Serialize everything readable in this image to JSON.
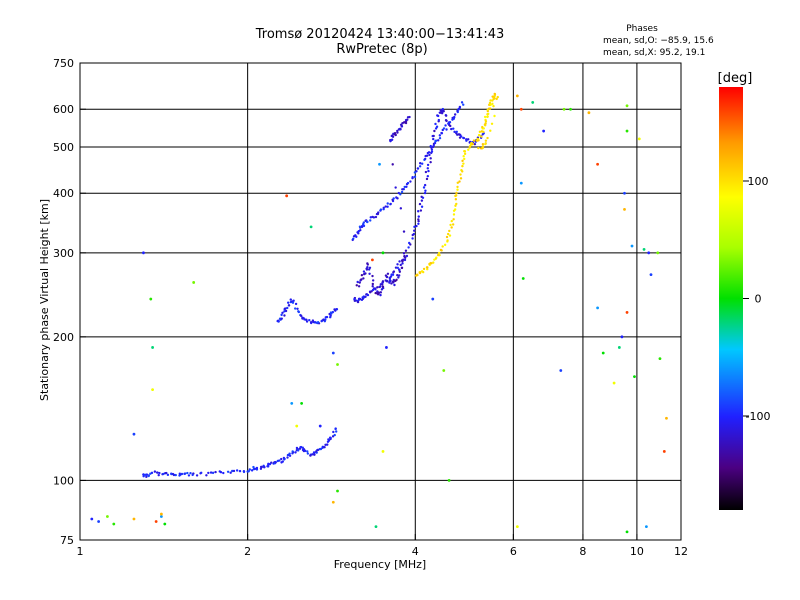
{
  "chart_data": {
    "type": "scatter",
    "title": "Tromsø 20120424 13:40:00−13:41:43",
    "subtitle": "RwPretec (8p)",
    "xlabel": "Frequency [MHz]",
    "ylabel": "Stationary phase Virtual Height [km]",
    "xscale": "log",
    "yscale": "log",
    "xlim": [
      1,
      12
    ],
    "ylim": [
      75,
      750
    ],
    "x_ticks": [
      1,
      2,
      4,
      6,
      8,
      10,
      12
    ],
    "y_ticks": [
      75,
      100,
      200,
      300,
      400,
      500,
      600,
      750
    ],
    "x_gridlines": [
      2,
      4,
      6,
      8,
      10
    ],
    "y_gridlines": [
      100,
      200,
      300,
      400,
      500,
      600
    ],
    "phase_stats": {
      "title": "Phases",
      "o_line": "mean, sd,O: −85.9, 15.6",
      "x_line": "mean, sd,X:  95.2, 19.1"
    },
    "colorbar": {
      "label": "[deg]",
      "range": [
        -180,
        180
      ],
      "ticks": [
        100,
        0,
        -100
      ]
    },
    "colors": {
      "o_mode": "#2244ee",
      "o_mode_light": "#2f7fe8",
      "x_mode": "#f2c200",
      "x_mode_orange": "#ff9900",
      "violet": "#3a10c8"
    },
    "series": [
      {
        "name": "O-mode E/F1 trace",
        "phase_deg": -100,
        "points": [
          [
            1.3,
            103
          ],
          [
            1.32,
            102
          ],
          [
            1.36,
            104
          ],
          [
            1.4,
            103
          ],
          [
            1.45,
            103
          ],
          [
            1.5,
            103
          ],
          [
            1.55,
            103
          ],
          [
            1.6,
            103
          ],
          [
            1.7,
            103
          ],
          [
            1.8,
            104
          ],
          [
            1.9,
            104
          ],
          [
            2.0,
            105
          ],
          [
            2.05,
            106
          ],
          [
            2.1,
            106
          ],
          [
            2.15,
            107
          ],
          [
            2.2,
            108
          ],
          [
            2.25,
            109
          ],
          [
            2.3,
            110
          ],
          [
            2.35,
            112
          ],
          [
            2.4,
            114
          ],
          [
            2.45,
            116
          ],
          [
            2.5,
            117
          ],
          [
            2.55,
            115
          ],
          [
            2.6,
            113
          ],
          [
            2.65,
            114
          ],
          [
            2.7,
            116
          ],
          [
            2.75,
            118
          ],
          [
            2.8,
            121
          ],
          [
            2.85,
            125
          ],
          [
            2.9,
            130
          ]
        ]
      },
      {
        "name": "O-mode F2 lower trace",
        "phase_deg": -100,
        "points": [
          [
            2.27,
            215
          ],
          [
            2.3,
            218
          ],
          [
            2.33,
            225
          ],
          [
            2.36,
            232
          ],
          [
            2.4,
            240
          ],
          [
            2.45,
            228
          ],
          [
            2.5,
            220
          ],
          [
            2.55,
            216
          ],
          [
            2.6,
            215
          ],
          [
            2.65,
            215
          ],
          [
            2.7,
            215
          ],
          [
            2.75,
            217
          ],
          [
            2.8,
            220
          ],
          [
            2.85,
            225
          ],
          [
            2.9,
            230
          ]
        ]
      },
      {
        "name": "O-mode F2 main trace",
        "phase_deg": -110,
        "points": [
          [
            3.1,
            240
          ],
          [
            3.15,
            238
          ],
          [
            3.2,
            240
          ],
          [
            3.25,
            243
          ],
          [
            3.3,
            247
          ],
          [
            3.4,
            252
          ],
          [
            3.5,
            258
          ],
          [
            3.6,
            266
          ],
          [
            3.7,
            278
          ],
          [
            3.8,
            292
          ],
          [
            3.9,
            312
          ],
          [
            4.0,
            335
          ],
          [
            4.05,
            355
          ],
          [
            4.1,
            378
          ],
          [
            4.15,
            405
          ],
          [
            4.2,
            440
          ],
          [
            4.25,
            475
          ],
          [
            4.3,
            510
          ],
          [
            4.35,
            545
          ],
          [
            4.4,
            580
          ],
          [
            4.45,
            600
          ],
          [
            4.5,
            590
          ],
          [
            4.6,
            560
          ],
          [
            4.7,
            540
          ],
          [
            4.8,
            530
          ],
          [
            4.9,
            520
          ],
          [
            5.0,
            515
          ],
          [
            5.1,
            510
          ],
          [
            5.2,
            520
          ],
          [
            5.3,
            540
          ]
        ]
      },
      {
        "name": "O-mode upper trace",
        "phase_deg": -100,
        "points": [
          [
            3.1,
            320
          ],
          [
            3.15,
            330
          ],
          [
            3.2,
            338
          ],
          [
            3.25,
            345
          ],
          [
            3.3,
            352
          ],
          [
            3.4,
            360
          ],
          [
            3.5,
            370
          ],
          [
            3.6,
            380
          ],
          [
            3.7,
            392
          ],
          [
            3.8,
            405
          ],
          [
            3.9,
            420
          ],
          [
            4.0,
            440
          ],
          [
            4.1,
            460
          ],
          [
            4.2,
            480
          ],
          [
            4.3,
            500
          ],
          [
            4.4,
            520
          ],
          [
            4.5,
            540
          ],
          [
            4.6,
            560
          ],
          [
            4.7,
            580
          ],
          [
            4.8,
            600
          ],
          [
            4.9,
            620
          ]
        ]
      },
      {
        "name": "O-mode spread echoes",
        "phase_deg": -120,
        "points": [
          [
            3.15,
            255
          ],
          [
            3.2,
            265
          ],
          [
            3.25,
            275
          ],
          [
            3.3,
            285
          ],
          [
            3.35,
            262
          ],
          [
            3.4,
            248
          ],
          [
            3.45,
            245
          ],
          [
            3.5,
            255
          ],
          [
            3.55,
            270
          ],
          [
            3.6,
            262
          ],
          [
            3.65,
            258
          ],
          [
            3.7,
            265
          ],
          [
            3.75,
            275
          ],
          [
            3.8,
            284
          ],
          [
            3.85,
            296
          ],
          [
            3.6,
            515
          ],
          [
            3.65,
            525
          ],
          [
            3.7,
            535
          ],
          [
            3.75,
            545
          ],
          [
            3.8,
            555
          ],
          [
            3.85,
            565
          ],
          [
            3.9,
            580
          ]
        ]
      },
      {
        "name": "X-mode F2 trace",
        "phase_deg": 100,
        "points": [
          [
            4.0,
            270
          ],
          [
            4.1,
            272
          ],
          [
            4.2,
            278
          ],
          [
            4.3,
            286
          ],
          [
            4.4,
            296
          ],
          [
            4.5,
            308
          ],
          [
            4.6,
            325
          ],
          [
            4.65,
            345
          ],
          [
            4.7,
            370
          ],
          [
            4.75,
            398
          ],
          [
            4.8,
            425
          ],
          [
            4.85,
            455
          ],
          [
            4.9,
            485
          ],
          [
            5.0,
            505
          ],
          [
            5.1,
            510
          ],
          [
            5.2,
            520
          ],
          [
            5.25,
            535
          ],
          [
            5.3,
            550
          ],
          [
            5.35,
            570
          ],
          [
            5.4,
            590
          ],
          [
            5.45,
            610
          ],
          [
            5.5,
            630
          ],
          [
            5.55,
            645
          ],
          [
            5.6,
            630
          ],
          [
            5.4,
            520
          ],
          [
            5.3,
            500
          ],
          [
            5.2,
            495
          ]
        ]
      },
      {
        "name": "Scattered echoes",
        "phase_deg": 0,
        "points": [
          [
            1.05,
            83
          ],
          [
            1.08,
            82
          ],
          [
            1.12,
            84
          ],
          [
            1.15,
            81
          ],
          [
            1.25,
            83
          ],
          [
            1.37,
            82
          ],
          [
            1.4,
            84
          ],
          [
            1.42,
            81
          ],
          [
            1.35,
            155
          ],
          [
            1.35,
            190
          ],
          [
            1.3,
            300
          ],
          [
            1.25,
            125
          ],
          [
            1.6,
            260
          ],
          [
            1.34,
            240
          ],
          [
            1.4,
            85
          ],
          [
            2.35,
            395
          ],
          [
            2.4,
            145
          ],
          [
            2.5,
            145
          ],
          [
            2.45,
            130
          ],
          [
            2.6,
            340
          ],
          [
            2.7,
            130
          ],
          [
            2.85,
            185
          ],
          [
            2.9,
            175
          ],
          [
            2.9,
            95
          ],
          [
            2.85,
            90
          ],
          [
            3.35,
            290
          ],
          [
            3.45,
            460
          ],
          [
            3.5,
            300
          ],
          [
            3.5,
            115
          ],
          [
            3.4,
            80
          ],
          [
            3.55,
            190
          ],
          [
            4.3,
            240
          ],
          [
            4.5,
            170
          ],
          [
            4.6,
            100
          ],
          [
            6.1,
            640
          ],
          [
            6.2,
            600
          ],
          [
            6.2,
            420
          ],
          [
            6.25,
            265
          ],
          [
            6.1,
            80
          ],
          [
            6.5,
            620
          ],
          [
            6.8,
            540
          ],
          [
            7.3,
            170
          ],
          [
            7.4,
            600
          ],
          [
            7.6,
            600
          ],
          [
            8.2,
            590
          ],
          [
            8.5,
            460
          ],
          [
            8.5,
            230
          ],
          [
            8.7,
            185
          ],
          [
            9.1,
            160
          ],
          [
            9.3,
            190
          ],
          [
            9.4,
            200
          ],
          [
            9.5,
            400
          ],
          [
            9.6,
            610
          ],
          [
            9.6,
            540
          ],
          [
            9.5,
            370
          ],
          [
            9.6,
            225
          ],
          [
            9.8,
            310
          ],
          [
            9.9,
            165
          ],
          [
            10.1,
            520
          ],
          [
            10.3,
            305
          ],
          [
            10.5,
            300
          ],
          [
            10.6,
            270
          ],
          [
            10.9,
            300
          ],
          [
            11.0,
            180
          ],
          [
            11.3,
            135
          ],
          [
            11.2,
            115
          ],
          [
            10.4,
            80
          ],
          [
            9.6,
            78
          ]
        ]
      }
    ]
  }
}
